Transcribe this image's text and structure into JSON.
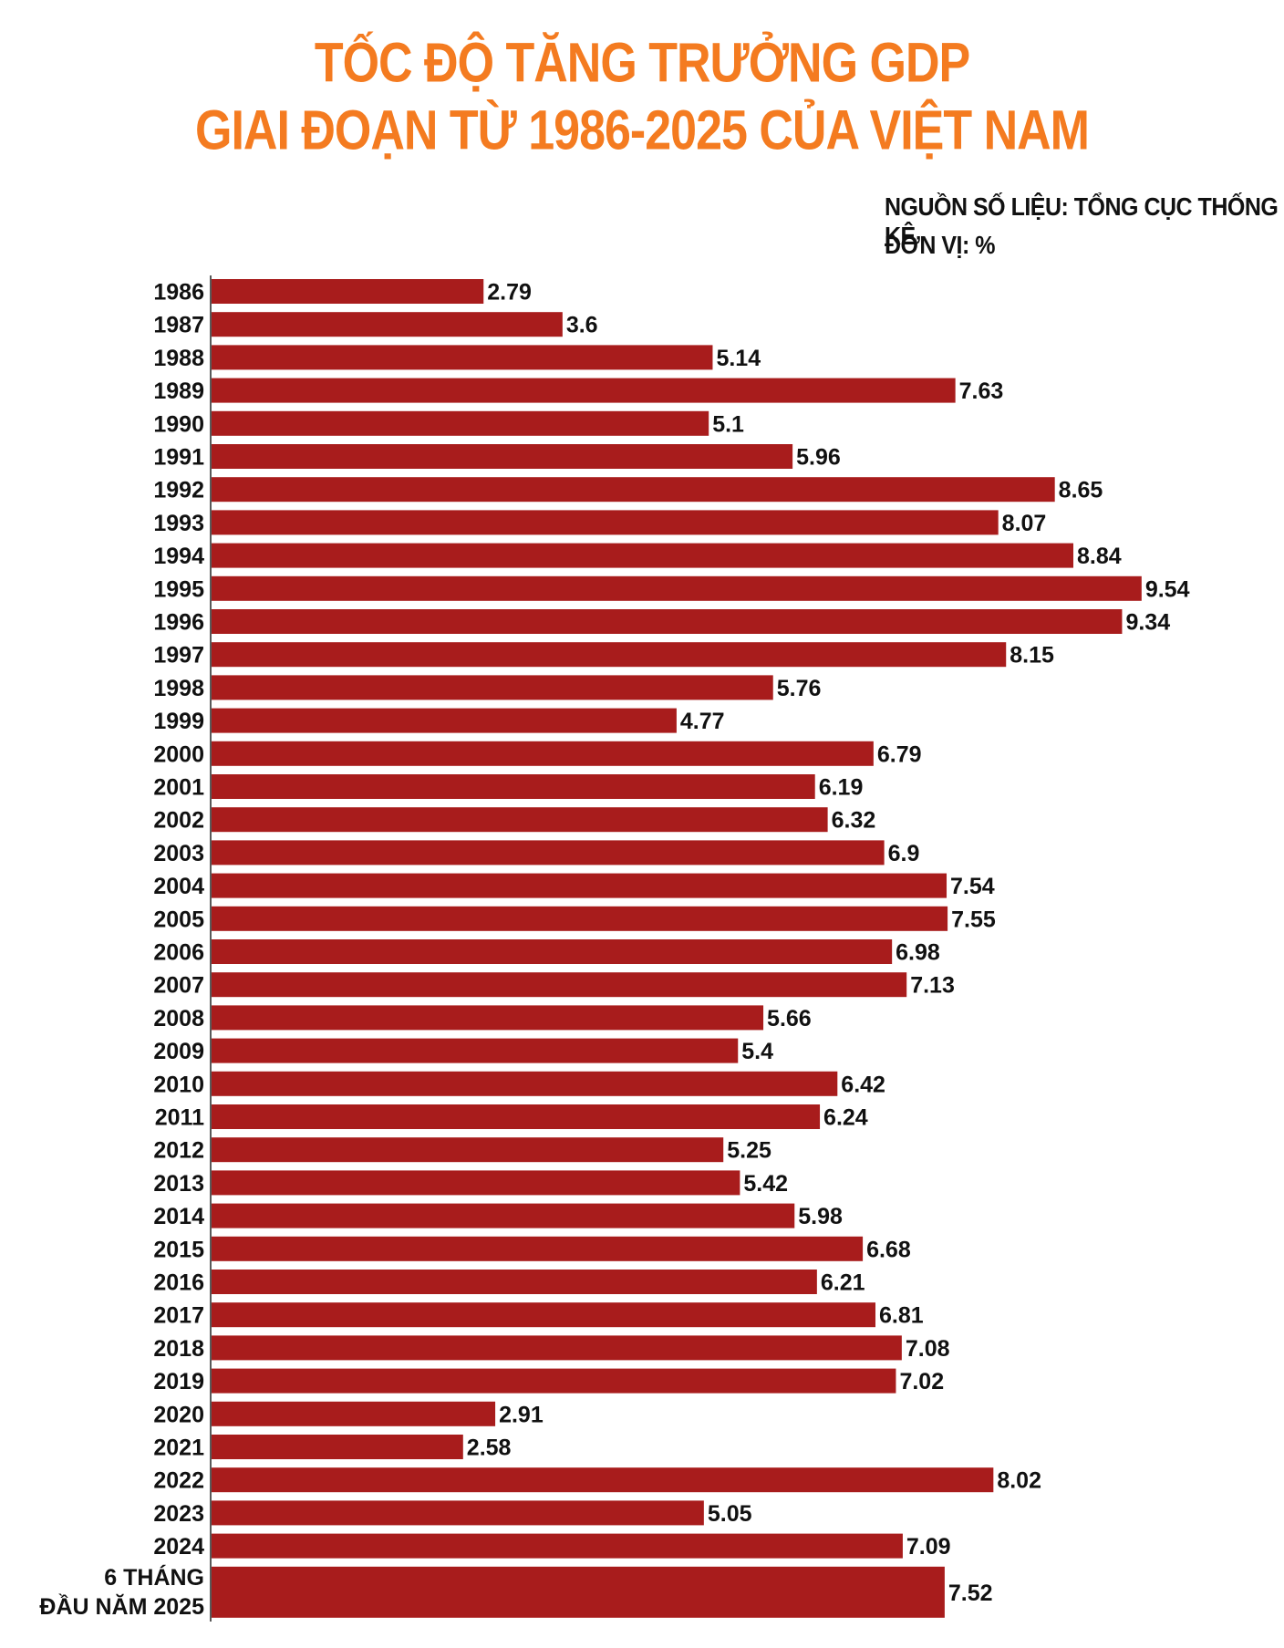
{
  "header": {
    "title_line1": "TỐC ĐỘ TĂNG TRƯỞNG GDP",
    "title_line2": "GIAI ĐOẠN TỪ 1986-2025 CỦA VIỆT NAM",
    "source": "NGUỒN SỐ LIỆU: TỔNG CỤC THỐNG KÊ",
    "unit": "ĐƠN VỊ: %"
  },
  "colors": {
    "title": "#f47b20",
    "bar": "#a81c1c",
    "text": "#111111"
  },
  "chart_data": {
    "type": "bar",
    "orientation": "horizontal",
    "title": "TỐC ĐỘ TĂNG TRƯỞNG GDP GIAI ĐOẠN TỪ 1986-2025 CỦA VIỆT NAM",
    "xlim": [
      0,
      10
    ],
    "categories": [
      "1986",
      "1987",
      "1988",
      "1989",
      "1990",
      "1991",
      "1992",
      "1993",
      "1994",
      "1995",
      "1996",
      "1997",
      "1998",
      "1999",
      "2000",
      "2001",
      "2002",
      "2003",
      "2004",
      "2005",
      "2006",
      "2007",
      "2008",
      "2009",
      "2010",
      "2011",
      "2012",
      "2013",
      "2014",
      "2015",
      "2016",
      "2017",
      "2018",
      "2019",
      "2020",
      "2021",
      "2022",
      "2023",
      "2024",
      "6 THÁNG|ĐẦU NĂM 2025"
    ],
    "values": [
      2.79,
      3.6,
      5.14,
      7.63,
      5.1,
      5.96,
      8.65,
      8.07,
      8.84,
      9.54,
      9.34,
      8.15,
      5.76,
      4.77,
      6.79,
      6.19,
      6.32,
      6.9,
      7.54,
      7.55,
      6.98,
      7.13,
      5.66,
      5.4,
      6.42,
      6.24,
      5.25,
      5.42,
      5.98,
      6.68,
      6.21,
      6.81,
      7.08,
      7.02,
      2.91,
      2.58,
      8.02,
      5.05,
      7.09,
      7.52
    ],
    "value_labels": [
      "2.79",
      "3.6",
      "5.14",
      "7.63",
      "5.1",
      "5.96",
      "8.65",
      "8.07",
      "8.84",
      "9.54",
      "9.34",
      "8.15",
      "5.76",
      "4.77",
      "6.79",
      "6.19",
      "6.32",
      "6.9",
      "7.54",
      "7.55",
      "6.98",
      "7.13",
      "5.66",
      "5.4",
      "6.42",
      "6.24",
      "5.25",
      "5.42",
      "5.98",
      "6.68",
      "6.21",
      "6.81",
      "7.08",
      "7.02",
      "2.91",
      "2.58",
      "8.02",
      "5.05",
      "7.09",
      "7.52"
    ],
    "legend": "none",
    "grid": false
  }
}
